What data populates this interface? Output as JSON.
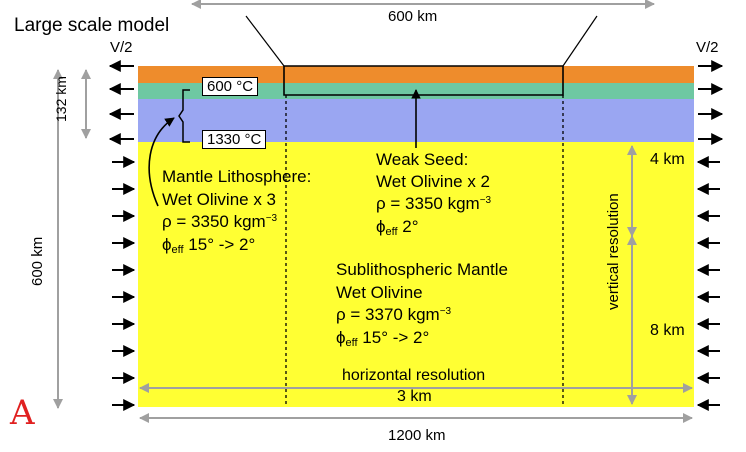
{
  "title": "Large scale model",
  "panel_letter": "A",
  "velocity_left": "V/2",
  "velocity_right": "V/2",
  "dimensions": {
    "top_width": "600 km",
    "total_width": "1200 km",
    "total_depth": "600 km",
    "lithosphere_thickness": "132 km"
  },
  "temperatures": {
    "top": "600 °C",
    "bottom": "1330 °C"
  },
  "weak_seed": {
    "title": "Weak Seed:",
    "material": "Wet Olivine x 2",
    "density": "ρ = 3350 kgm",
    "density_exp": "−3",
    "phi_symbol": "ϕ",
    "phi_sub": "eff",
    "phi_value": " 2°"
  },
  "mantle_lithosphere": {
    "title": "Mantle Lithosphere:",
    "material": "Wet Olivine x 3",
    "density": "ρ = 3350 kgm",
    "density_exp": "−3",
    "phi_symbol": "ϕ",
    "phi_sub": "eff",
    "phi_value": " 15° -> 2°"
  },
  "sublithospheric_mantle": {
    "title": "Sublithospheric Mantle",
    "material": "Wet Olivine",
    "density": "ρ = 3370 kgm",
    "density_exp": "−3",
    "phi_symbol": "ϕ",
    "phi_sub": "eff",
    "phi_value": " 15° -> 2°"
  },
  "resolution": {
    "vertical_label": "vertical resolution",
    "vertical_top": "4 km",
    "vertical_bottom": "8 km",
    "horizontal_label": "horizontal resolution",
    "horizontal_value": "3 km"
  },
  "colors": {
    "crust": "#ee8c2c",
    "lithosphere_upper": "#6ec8a2",
    "lithosphere": "#9aa6f2",
    "mantle": "#ffff33",
    "dimension_arrow": "#a0a0a0",
    "panel_letter": "#e02020"
  }
}
